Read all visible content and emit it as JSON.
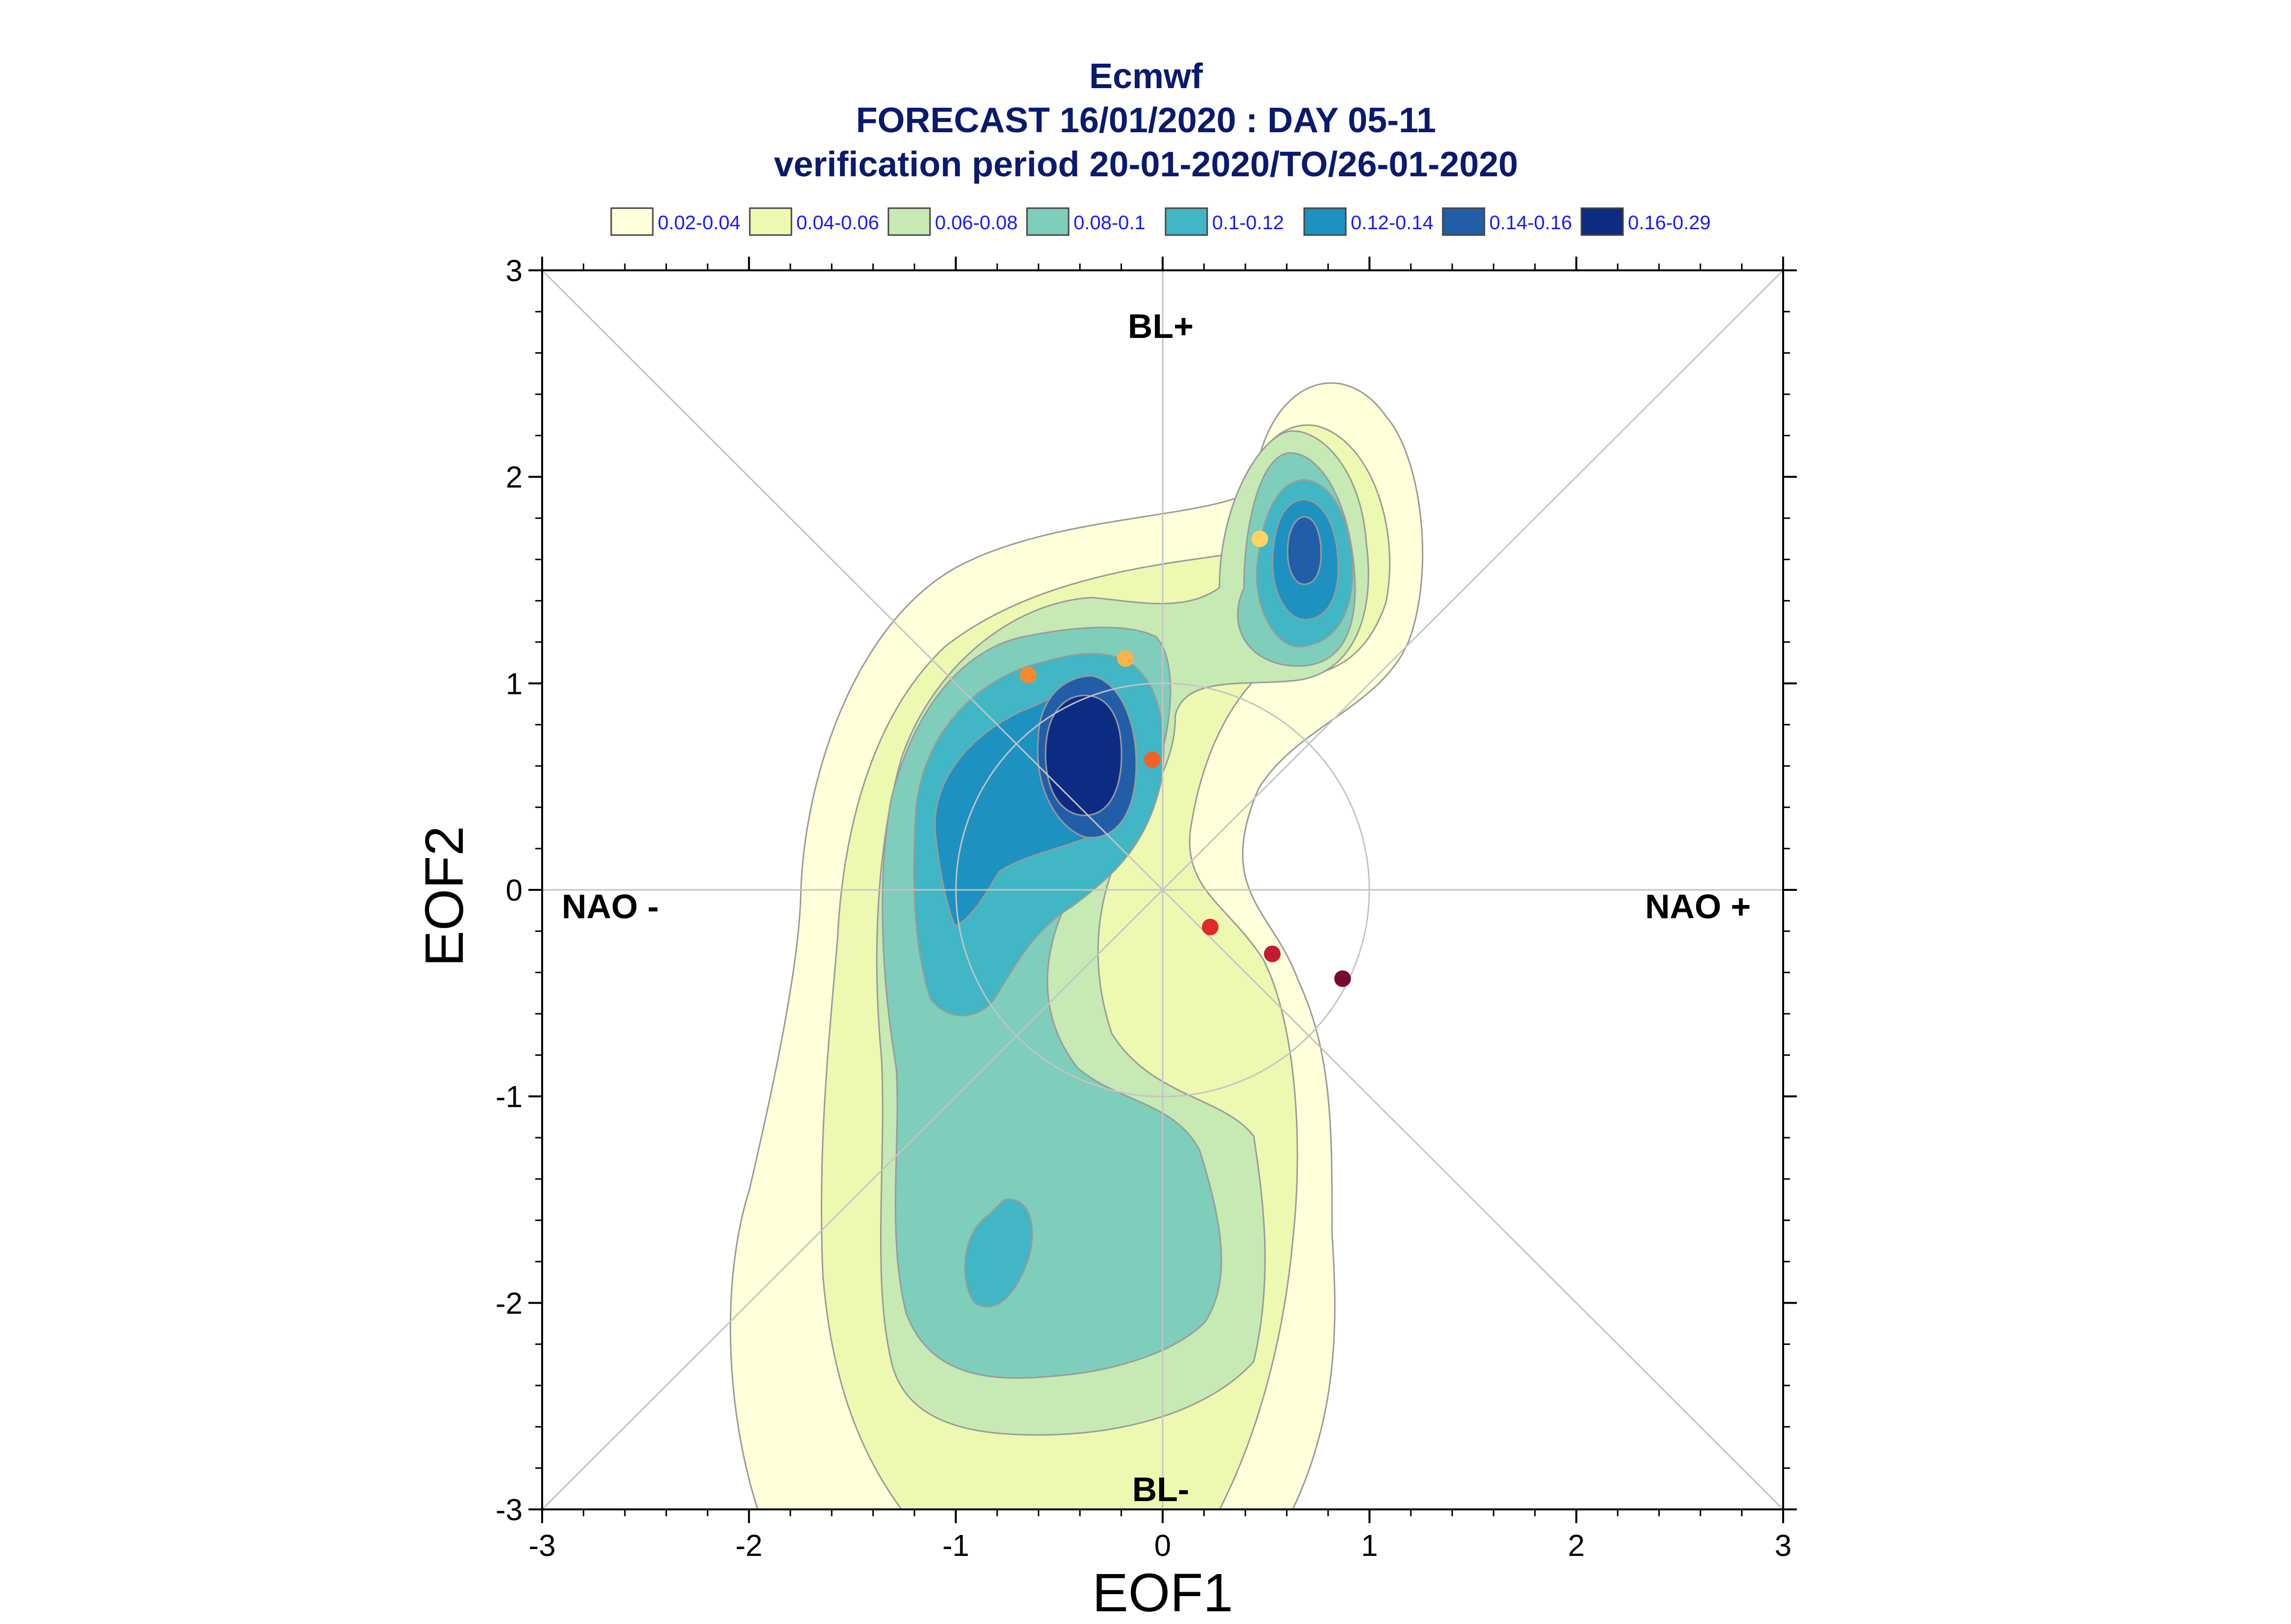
{
  "chart_data": {
    "type": "contour",
    "title_lines": [
      "Ecmwf",
      "FORECAST 16/01/2020 : DAY 05-11",
      "verification period 20-01-2020/TO/26-01-2020"
    ],
    "xlabel": "EOF1",
    "ylabel": "EOF2",
    "xlim": [
      -3,
      3
    ],
    "ylim": [
      -3,
      3
    ],
    "x_ticks": [
      "-3",
      "-2",
      "-1",
      "0",
      "1",
      "2",
      "3"
    ],
    "y_ticks": [
      "3",
      "2",
      "1",
      "0",
      "-1",
      "-2",
      "-3"
    ],
    "region_labels": {
      "top": "BL+",
      "bottom": "BL-",
      "left": "NAO -",
      "right": "NAO +"
    },
    "legend": [
      {
        "label": "0.02-0.04",
        "color": "#ffffd9"
      },
      {
        "label": "0.04-0.06",
        "color": "#edf8b1"
      },
      {
        "label": "0.06-0.08",
        "color": "#c7e9b4"
      },
      {
        "label": "0.08-0.1",
        "color": "#7fcdbb"
      },
      {
        "label": "0.1-0.12",
        "color": "#41b6c4"
      },
      {
        "label": "0.12-0.14",
        "color": "#1d91c0"
      },
      {
        "label": "0.14-0.16",
        "color": "#225ea8"
      },
      {
        "label": "0.16-0.29",
        "color": "#0c2c84"
      }
    ],
    "density_peaks": [
      {
        "x": -0.38,
        "y": 0.68,
        "max_level": "0.16-0.29"
      },
      {
        "x": 0.66,
        "y": 1.62,
        "max_level": "0.14-0.16"
      },
      {
        "x": -0.8,
        "y": -1.75,
        "max_level": "0.1-0.12"
      }
    ],
    "trajectory_points": [
      {
        "x": 0.47,
        "y": 1.7,
        "color": "#fdd365"
      },
      {
        "x": -0.18,
        "y": 1.12,
        "color": "#fdb347"
      },
      {
        "x": -0.65,
        "y": 1.04,
        "color": "#f6892d"
      },
      {
        "x": -0.05,
        "y": 0.63,
        "color": "#f26128"
      },
      {
        "x": 0.23,
        "y": -0.18,
        "color": "#e02a2a"
      },
      {
        "x": 0.53,
        "y": -0.31,
        "color": "#c41b31"
      },
      {
        "x": 0.87,
        "y": -0.43,
        "color": "#7a0a2a"
      }
    ],
    "unit_circle_radius": 1,
    "diagonal_lines": true,
    "axis_lines": true
  }
}
